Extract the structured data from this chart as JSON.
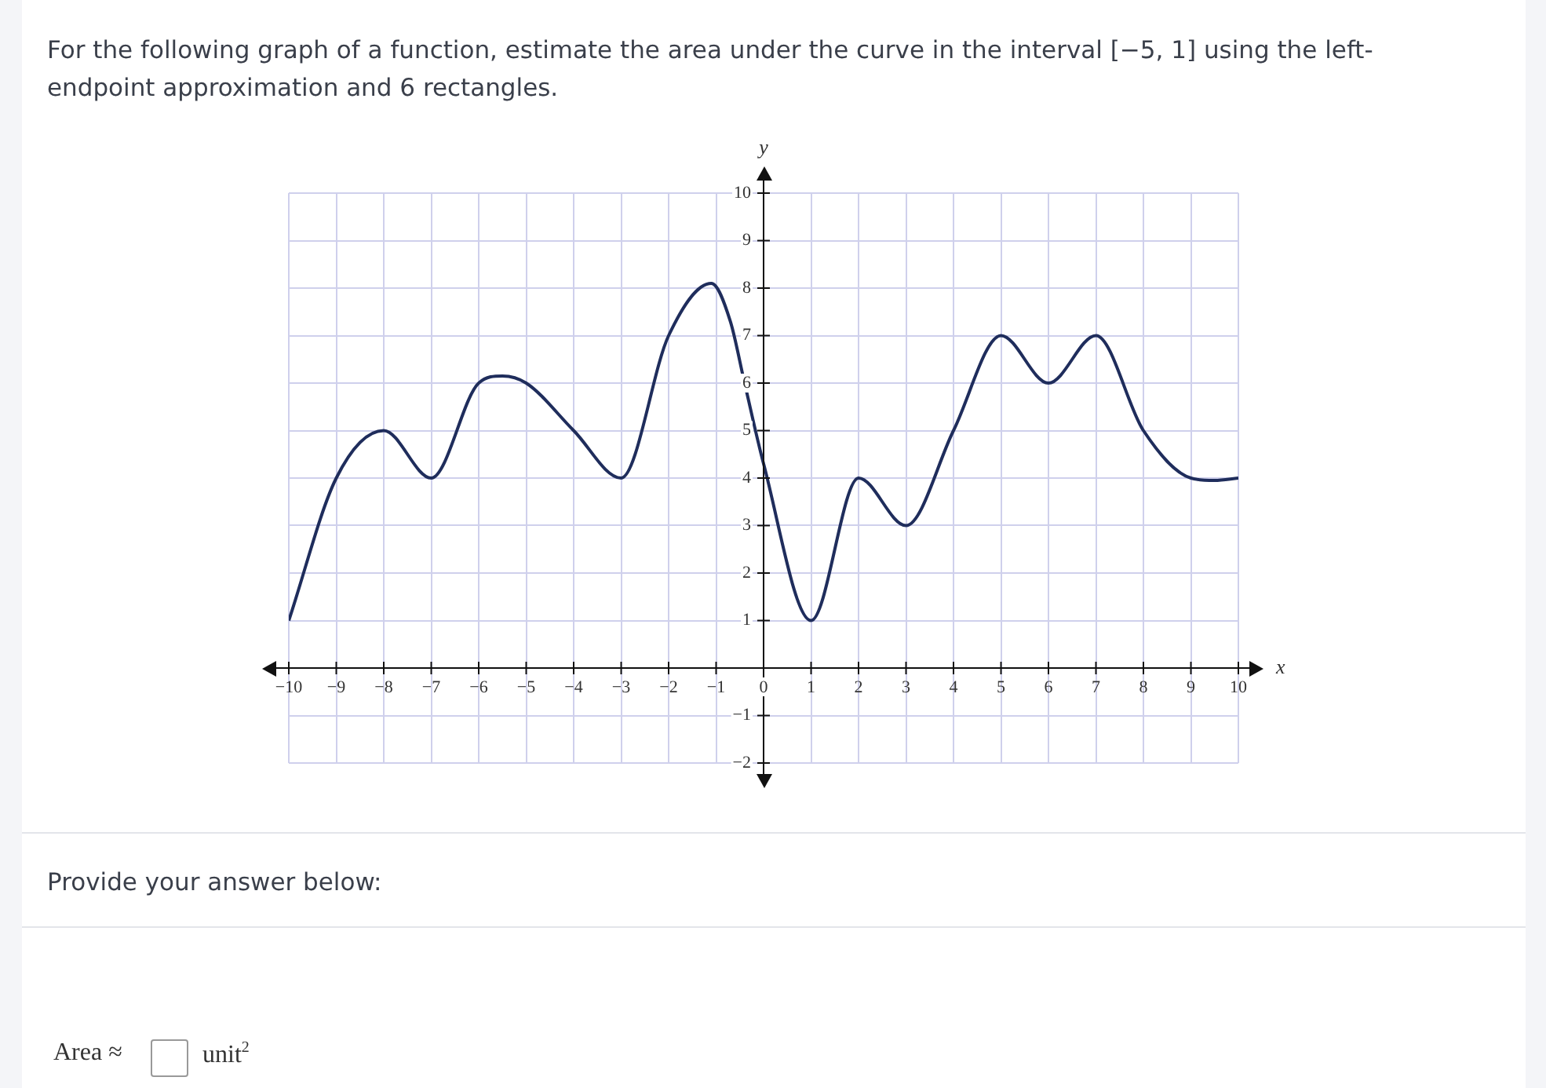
{
  "chart_data": {
    "type": "line",
    "title": "For the following graph of a function, estimate the area under the curve in the interval [−5, 1] using the left-endpoint approximation and 6 rectangles.",
    "xlabel": "x",
    "ylabel": "y",
    "x": [
      -10,
      -9,
      -8,
      -7,
      -6,
      -5.5,
      -5,
      -4,
      -3,
      -2,
      -1.1,
      -0.7,
      -0.4,
      0,
      1,
      2,
      3,
      4,
      5,
      6,
      7,
      8,
      9,
      9.5,
      10
    ],
    "series": [
      {
        "color": "#1f2d5c",
        "values": [
          1,
          4,
          5,
          4,
          6,
          6.15,
          6,
          5,
          4,
          7,
          8.1,
          7.3,
          6,
          4.3,
          1,
          4,
          3,
          5,
          7,
          6,
          7,
          5,
          4,
          3.95,
          4
        ]
      }
    ],
    "xlim": [
      -10,
      10
    ],
    "ylim": [
      -2,
      10
    ],
    "xticks": [
      -10,
      -9,
      -8,
      -7,
      -6,
      -5,
      -4,
      -3,
      -2,
      -1,
      0,
      1,
      2,
      3,
      4,
      5,
      6,
      7,
      8,
      9,
      10
    ],
    "yticks": [
      -2,
      -1,
      1,
      2,
      3,
      4,
      5,
      6,
      7,
      8,
      9,
      10
    ],
    "grid": true,
    "legend": false,
    "marker": "none",
    "line_style": "solid",
    "annotations": [
      "Provide your answer below:",
      "Area ≈",
      "unit$^{2}$"
    ]
  }
}
